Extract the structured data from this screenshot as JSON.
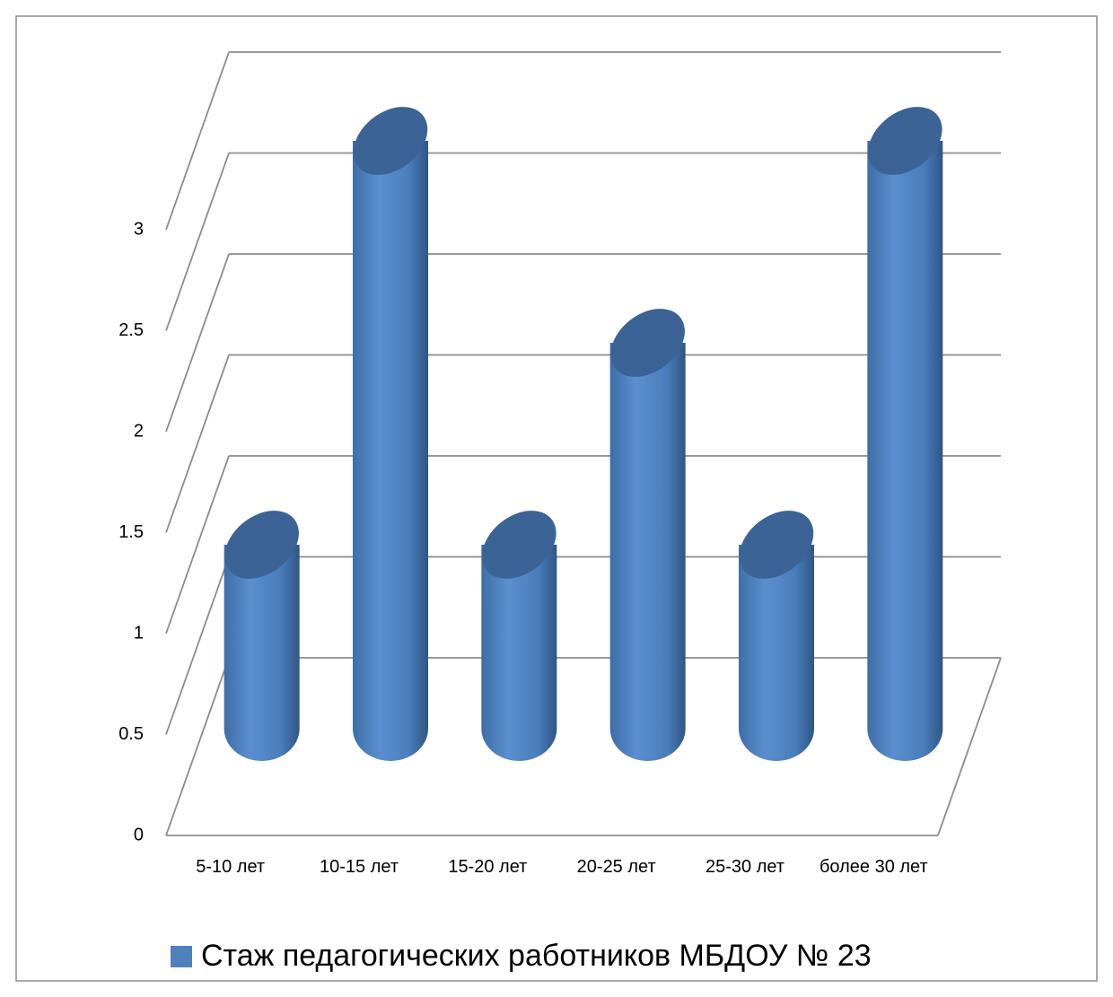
{
  "chart_data": {
    "type": "bar",
    "categories": [
      "5-10 лет",
      "10-15 лет",
      "15-20 лет",
      "20-25 лет",
      "25-30 лет",
      "более 30 лет"
    ],
    "series": [
      {
        "name": "Стаж педагогических работников МБДОУ № 23",
        "color": "#4f81bd",
        "values": [
          1,
          3,
          1,
          2,
          1,
          3
        ]
      }
    ],
    "ylim": [
      0,
      3
    ],
    "yticks": [
      0,
      0.5,
      1,
      1.5,
      2,
      2.5,
      3
    ],
    "grid": true,
    "legend": "bottom"
  }
}
